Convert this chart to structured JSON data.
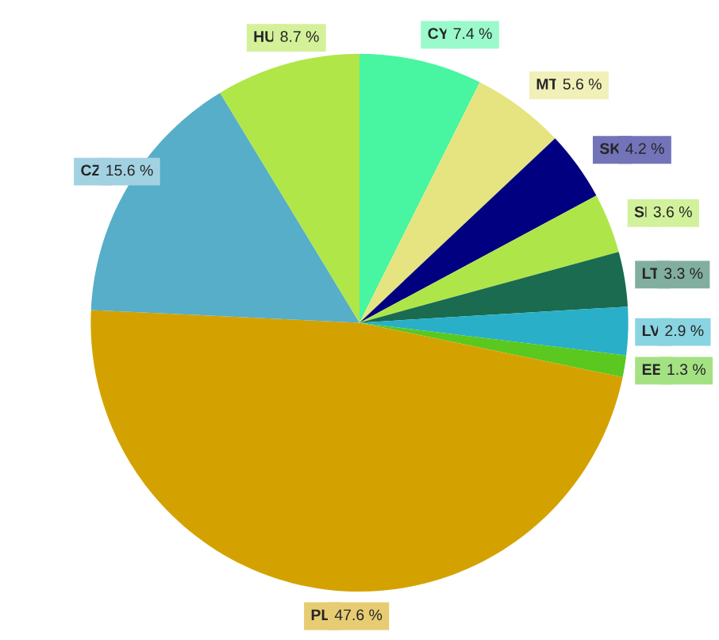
{
  "chart_data": {
    "type": "pie",
    "categories": [
      "CY",
      "MT",
      "SK",
      "SI",
      "LT",
      "LV",
      "EE",
      "PL",
      "CZ",
      "HU"
    ],
    "values": [
      7.4,
      5.6,
      4.2,
      3.6,
      3.3,
      2.9,
      1.3,
      47.6,
      15.6,
      8.7
    ],
    "value_labels": [
      "7.4 %",
      "5.6 %",
      "4.2 %",
      "3.6 %",
      "3.3 %",
      "2.9 %",
      "1.3 %",
      "47.6 %",
      "15.6 %",
      "8.7 %"
    ],
    "colors": [
      "#48f5a0",
      "#e6e480",
      "#000080",
      "#aee64a",
      "#1a6b50",
      "#29b0c8",
      "#5ac81e",
      "#d4a200",
      "#56aec8",
      "#b0e648"
    ]
  }
}
